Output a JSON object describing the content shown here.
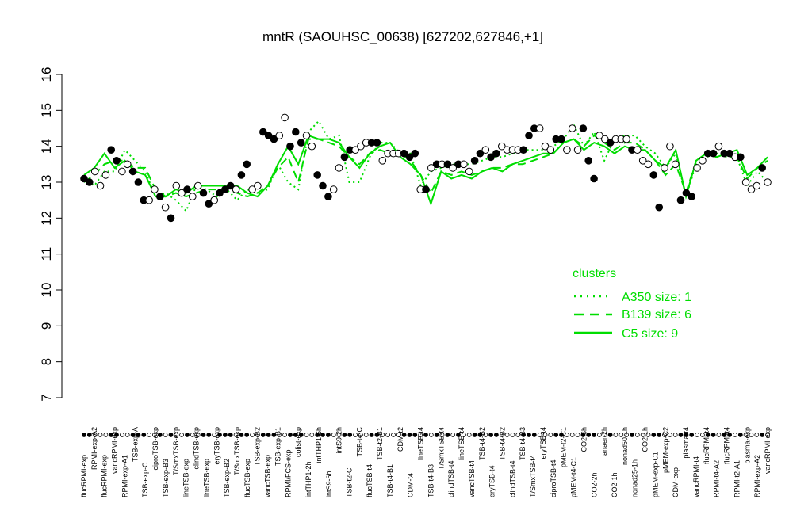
{
  "chart_data": {
    "type": "line",
    "title": "mntR (SAOUHSC_00638) [627202,627846,+1]",
    "ylim": [
      7,
      16
    ],
    "yticks": [
      7,
      8,
      9,
      10,
      11,
      12,
      13,
      14,
      15,
      16
    ],
    "categories": [
      "flucRPMI-exp",
      "RPMI-exp-A2",
      "flucRPMI-exp",
      "vancRPMI-exp",
      "RPMI-exp-A1",
      "TSB-exp-A",
      "TSB-exp-C",
      "ciproTSB-exp",
      "TSB-exp-B3",
      "T/SmxTSB-exp",
      "lineTSB-exp",
      "clindTSB-exp",
      "lineTSB-exp",
      "eryTSB-exp",
      "TSB-exp-B2",
      "T/SmxTSB-exp",
      "flucTSB-exp",
      "TSB-exp-B2",
      "vancTSB-exp",
      "TSB-exp-B1",
      "RPMI/FCS-exp",
      "colist-exp",
      "intTHP1-2h",
      "intTHP1-6h",
      "intS9-6h",
      "intS9-2h",
      "TSB-t2-C",
      "TSB-t4-C",
      "flucTSB-t4",
      "TSB-t2-B1",
      "TSB-t4-B1",
      "CDM-t2",
      "CDM-t4",
      "lineTSB-t4",
      "TSB-t4-B3",
      "T/SmxTSB-t4",
      "clindTSB-t4",
      "lineTSB-t4",
      "vancTSB-t4",
      "TSB-t4-B2",
      "eryTSB-t4",
      "TSB-t4-B2",
      "clindTSB-t4",
      "TSB-t4-B3",
      "T/SmxTSB-t4",
      "eryTSB-t4",
      "ciproTSB-t4",
      "pMEM-t2-C1",
      "pMEM-t4-C1",
      "CO2-6h",
      "CO2-2h",
      "anaer-2h",
      "CO2-1h",
      "nonad50-1h",
      "nonad25-1h",
      "CO2-1h",
      "pMEM-exp-C1",
      "pMEM-exp-C2",
      "CDM-exp",
      "plasma-t4",
      "vancRPMI-t4",
      "flucRPMI-t4",
      "RPMI-t4-A2",
      "flucRPMI-t4",
      "RPMI-t2-A1",
      "plasma-exp",
      "RPMI-exp-A2",
      "vancRPMI-exp"
    ],
    "series": [
      {
        "values": [
          13.1,
          12.9,
          13.3,
          13.3,
          13.9,
          13.6,
          13.3,
          12.6,
          12.7,
          12.5,
          12.2,
          12.9,
          12.8,
          12.6,
          12.8,
          12.5,
          12.8,
          12.7,
          12.8,
          13.5,
          13.0,
          12.8,
          14.4,
          14.7,
          14.2,
          14.3,
          13.0,
          13.0,
          13.7,
          14.1,
          14.1,
          13.8,
          13.8,
          12.9,
          13.3,
          13.4,
          13.5,
          13.5,
          13.5,
          13.6,
          13.7,
          13.7,
          13.8,
          13.9,
          13.9,
          13.9,
          14.0,
          14.2,
          14.6,
          14.0,
          14.4,
          13.6,
          14.2,
          14.3,
          14.3,
          14.0,
          13.8,
          13.4,
          13.8,
          12.6,
          13.5,
          13.7,
          13.8,
          13.7,
          13.7,
          12.9,
          13.3,
          13.0
        ]
      },
      {
        "values": [
          13.0,
          13.2,
          13.5,
          13.6,
          13.6,
          13.4,
          13.4,
          12.8,
          12.6,
          12.7,
          12.6,
          12.7,
          12.8,
          12.8,
          12.8,
          12.7,
          12.6,
          12.7,
          12.9,
          13.4,
          13.7,
          13.0,
          14.2,
          14.2,
          14.1,
          14.0,
          13.7,
          13.5,
          13.8,
          13.9,
          13.8,
          13.8,
          13.6,
          13.2,
          12.7,
          13.3,
          13.2,
          13.3,
          13.2,
          13.3,
          13.4,
          13.4,
          13.5,
          13.5,
          13.6,
          13.7,
          13.8,
          14.1,
          14.2,
          14.0,
          14.3,
          14.1,
          13.9,
          14.1,
          14.1,
          13.9,
          13.6,
          13.2,
          13.5,
          12.7,
          13.6,
          13.8,
          13.7,
          13.8,
          13.7,
          13.1,
          13.4,
          13.6
        ]
      },
      {
        "values": [
          13.2,
          13.4,
          13.8,
          13.4,
          13.6,
          13.3,
          13.2,
          12.6,
          12.6,
          12.8,
          12.7,
          12.9,
          12.9,
          12.9,
          12.9,
          12.9,
          12.7,
          12.6,
          12.9,
          13.5,
          14.0,
          13.5,
          14.3,
          14.2,
          14.2,
          14.1,
          13.7,
          13.4,
          13.8,
          14.0,
          14.1,
          13.7,
          13.5,
          13.2,
          12.4,
          13.3,
          13.1,
          13.2,
          13.1,
          13.3,
          13.4,
          13.3,
          13.5,
          13.6,
          13.7,
          13.8,
          13.8,
          14.1,
          14.2,
          13.9,
          14.1,
          14.0,
          13.8,
          14.0,
          13.9,
          13.9,
          13.6,
          13.4,
          13.9,
          12.6,
          13.6,
          13.8,
          13.7,
          13.8,
          13.9,
          13.2,
          13.4,
          13.7
        ]
      }
    ],
    "points": [
      {
        "x": 1,
        "y": 13.1,
        "filled": true
      },
      {
        "x": 2,
        "y": 13.0,
        "filled": true
      },
      {
        "x": 3,
        "y": 13.3,
        "filled": false
      },
      {
        "x": 4,
        "y": 12.9,
        "filled": false
      },
      {
        "x": 5,
        "y": 13.2,
        "filled": false
      },
      {
        "x": 6,
        "y": 13.9,
        "filled": true
      },
      {
        "x": 7,
        "y": 13.6,
        "filled": true
      },
      {
        "x": 8,
        "y": 13.3,
        "filled": false
      },
      {
        "x": 9,
        "y": 13.5,
        "filled": false
      },
      {
        "x": 10,
        "y": 13.3,
        "filled": true
      },
      {
        "x": 11,
        "y": 13.0,
        "filled": true
      },
      {
        "x": 12,
        "y": 12.5,
        "filled": true
      },
      {
        "x": 13,
        "y": 12.5,
        "filled": false
      },
      {
        "x": 14,
        "y": 12.8,
        "filled": false
      },
      {
        "x": 15,
        "y": 12.6,
        "filled": true
      },
      {
        "x": 16,
        "y": 12.3,
        "filled": false
      },
      {
        "x": 17,
        "y": 12.0,
        "filled": true
      },
      {
        "x": 18,
        "y": 12.9,
        "filled": false
      },
      {
        "x": 19,
        "y": 12.7,
        "filled": false
      },
      {
        "x": 20,
        "y": 12.8,
        "filled": true
      },
      {
        "x": 21,
        "y": 12.6,
        "filled": false
      },
      {
        "x": 22,
        "y": 12.9,
        "filled": false
      },
      {
        "x": 23,
        "y": 12.7,
        "filled": true
      },
      {
        "x": 24,
        "y": 12.4,
        "filled": true
      },
      {
        "x": 25,
        "y": 12.5,
        "filled": false
      },
      {
        "x": 26,
        "y": 12.7,
        "filled": true
      },
      {
        "x": 27,
        "y": 12.8,
        "filled": true
      },
      {
        "x": 28,
        "y": 12.9,
        "filled": true
      },
      {
        "x": 29,
        "y": 12.8,
        "filled": false
      },
      {
        "x": 30,
        "y": 13.2,
        "filled": true
      },
      {
        "x": 31,
        "y": 13.5,
        "filled": true
      },
      {
        "x": 32,
        "y": 12.8,
        "filled": false
      },
      {
        "x": 33,
        "y": 12.9,
        "filled": false
      },
      {
        "x": 34,
        "y": 14.4,
        "filled": true
      },
      {
        "x": 35,
        "y": 14.3,
        "filled": true
      },
      {
        "x": 36,
        "y": 14.2,
        "filled": true
      },
      {
        "x": 37,
        "y": 14.3,
        "filled": false
      },
      {
        "x": 38,
        "y": 14.8,
        "filled": false
      },
      {
        "x": 39,
        "y": 14.0,
        "filled": true
      },
      {
        "x": 40,
        "y": 14.4,
        "filled": true
      },
      {
        "x": 41,
        "y": 14.1,
        "filled": true
      },
      {
        "x": 42,
        "y": 14.3,
        "filled": false
      },
      {
        "x": 43,
        "y": 14.0,
        "filled": false
      },
      {
        "x": 44,
        "y": 13.2,
        "filled": true
      },
      {
        "x": 45,
        "y": 12.9,
        "filled": true
      },
      {
        "x": 46,
        "y": 12.6,
        "filled": true
      },
      {
        "x": 47,
        "y": 12.8,
        "filled": false
      },
      {
        "x": 48,
        "y": 13.4,
        "filled": false
      },
      {
        "x": 49,
        "y": 13.7,
        "filled": true
      },
      {
        "x": 50,
        "y": 13.9,
        "filled": true
      },
      {
        "x": 51,
        "y": 13.9,
        "filled": false
      },
      {
        "x": 52,
        "y": 14.0,
        "filled": false
      },
      {
        "x": 53,
        "y": 14.1,
        "filled": false
      },
      {
        "x": 54,
        "y": 14.1,
        "filled": true
      },
      {
        "x": 55,
        "y": 14.1,
        "filled": true
      },
      {
        "x": 56,
        "y": 13.6,
        "filled": false
      },
      {
        "x": 57,
        "y": 13.8,
        "filled": false
      },
      {
        "x": 58,
        "y": 13.8,
        "filled": false
      },
      {
        "x": 59,
        "y": 13.8,
        "filled": false
      },
      {
        "x": 60,
        "y": 13.8,
        "filled": true
      },
      {
        "x": 61,
        "y": 13.7,
        "filled": true
      },
      {
        "x": 62,
        "y": 13.8,
        "filled": true
      },
      {
        "x": 63,
        "y": 12.8,
        "filled": false
      },
      {
        "x": 64,
        "y": 12.8,
        "filled": true
      },
      {
        "x": 65,
        "y": 13.4,
        "filled": false
      },
      {
        "x": 66,
        "y": 13.5,
        "filled": true
      },
      {
        "x": 67,
        "y": 13.5,
        "filled": false
      },
      {
        "x": 68,
        "y": 13.5,
        "filled": true
      },
      {
        "x": 69,
        "y": 13.4,
        "filled": false
      },
      {
        "x": 70,
        "y": 13.5,
        "filled": true
      },
      {
        "x": 71,
        "y": 13.5,
        "filled": false
      },
      {
        "x": 72,
        "y": 13.3,
        "filled": false
      },
      {
        "x": 73,
        "y": 13.6,
        "filled": true
      },
      {
        "x": 74,
        "y": 13.8,
        "filled": true
      },
      {
        "x": 75,
        "y": 13.9,
        "filled": false
      },
      {
        "x": 76,
        "y": 13.7,
        "filled": true
      },
      {
        "x": 77,
        "y": 13.8,
        "filled": true
      },
      {
        "x": 78,
        "y": 14.0,
        "filled": false
      },
      {
        "x": 79,
        "y": 13.9,
        "filled": false
      },
      {
        "x": 80,
        "y": 13.9,
        "filled": false
      },
      {
        "x": 81,
        "y": 13.9,
        "filled": false
      },
      {
        "x": 82,
        "y": 13.9,
        "filled": true
      },
      {
        "x": 83,
        "y": 14.3,
        "filled": true
      },
      {
        "x": 84,
        "y": 14.5,
        "filled": true
      },
      {
        "x": 85,
        "y": 14.5,
        "filled": false
      },
      {
        "x": 86,
        "y": 14.0,
        "filled": false
      },
      {
        "x": 87,
        "y": 13.9,
        "filled": false
      },
      {
        "x": 88,
        "y": 14.2,
        "filled": true
      },
      {
        "x": 89,
        "y": 14.2,
        "filled": true
      },
      {
        "x": 90,
        "y": 13.9,
        "filled": false
      },
      {
        "x": 91,
        "y": 14.5,
        "filled": false
      },
      {
        "x": 92,
        "y": 13.9,
        "filled": false
      },
      {
        "x": 93,
        "y": 14.5,
        "filled": true
      },
      {
        "x": 94,
        "y": 13.6,
        "filled": true
      },
      {
        "x": 95,
        "y": 13.1,
        "filled": true
      },
      {
        "x": 96,
        "y": 14.3,
        "filled": false
      },
      {
        "x": 97,
        "y": 14.2,
        "filled": false
      },
      {
        "x": 98,
        "y": 14.1,
        "filled": true
      },
      {
        "x": 99,
        "y": 14.2,
        "filled": false
      },
      {
        "x": 100,
        "y": 14.2,
        "filled": false
      },
      {
        "x": 101,
        "y": 14.2,
        "filled": false
      },
      {
        "x": 102,
        "y": 13.9,
        "filled": true
      },
      {
        "x": 103,
        "y": 13.9,
        "filled": false
      },
      {
        "x": 104,
        "y": 13.6,
        "filled": false
      },
      {
        "x": 105,
        "y": 13.5,
        "filled": false
      },
      {
        "x": 106,
        "y": 13.2,
        "filled": true
      },
      {
        "x": 107,
        "y": 12.3,
        "filled": true
      },
      {
        "x": 108,
        "y": 13.4,
        "filled": false
      },
      {
        "x": 109,
        "y": 14.0,
        "filled": false
      },
      {
        "x": 110,
        "y": 13.5,
        "filled": false
      },
      {
        "x": 111,
        "y": 12.5,
        "filled": true
      },
      {
        "x": 112,
        "y": 12.7,
        "filled": true
      },
      {
        "x": 113,
        "y": 12.6,
        "filled": true
      },
      {
        "x": 114,
        "y": 13.4,
        "filled": false
      },
      {
        "x": 115,
        "y": 13.6,
        "filled": false
      },
      {
        "x": 116,
        "y": 13.8,
        "filled": true
      },
      {
        "x": 117,
        "y": 13.8,
        "filled": true
      },
      {
        "x": 118,
        "y": 14.0,
        "filled": false
      },
      {
        "x": 119,
        "y": 13.8,
        "filled": true
      },
      {
        "x": 120,
        "y": 13.8,
        "filled": true
      },
      {
        "x": 121,
        "y": 13.7,
        "filled": false
      },
      {
        "x": 122,
        "y": 13.7,
        "filled": true
      },
      {
        "x": 123,
        "y": 13.0,
        "filled": false
      },
      {
        "x": 124,
        "y": 12.8,
        "filled": false
      },
      {
        "x": 125,
        "y": 12.9,
        "filled": false
      },
      {
        "x": 126,
        "y": 13.4,
        "filled": true
      },
      {
        "x": 127,
        "y": 13.0,
        "filled": false
      }
    ],
    "legend": {
      "title": "clusters",
      "position": "right",
      "entries": [
        {
          "label": "A350 size: 1",
          "style": "dotted"
        },
        {
          "label": "B139 size: 6",
          "style": "dashed"
        },
        {
          "label": "C5 size: 9",
          "style": "solid"
        }
      ]
    },
    "colors": {
      "lines": "#00dd00",
      "points": "#000000",
      "point_fill_open": "#ffffff"
    }
  }
}
